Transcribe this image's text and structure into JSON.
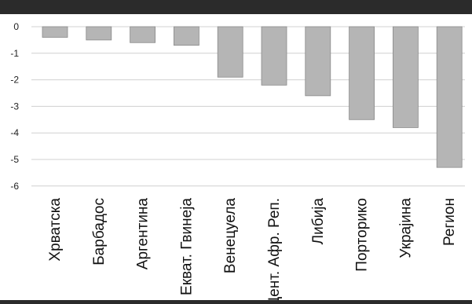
{
  "chart_data": {
    "type": "bar",
    "categories": [
      "Хрватска",
      "Барбадос",
      "Аргентина",
      "Екват. Гвинеја",
      "Венецуела",
      "Цент. Афр. Реп.",
      "Либија",
      "Порторико",
      "Украјина",
      "Регион"
    ],
    "values": [
      -0.4,
      -0.5,
      -0.6,
      -0.7,
      -1.9,
      -2.2,
      -2.6,
      -3.5,
      -3.8,
      -5.3
    ],
    "yticks": [
      "0",
      "-1",
      "-2",
      "-3",
      "-4",
      "-5",
      "-6"
    ],
    "ylim": [
      -6,
      0
    ],
    "grid": true,
    "colors": {
      "bar": "#b5b5b5",
      "bar_edge": "#8a8a8a",
      "grid": "#d0d0d0",
      "frame": "#2b2b2b"
    }
  }
}
